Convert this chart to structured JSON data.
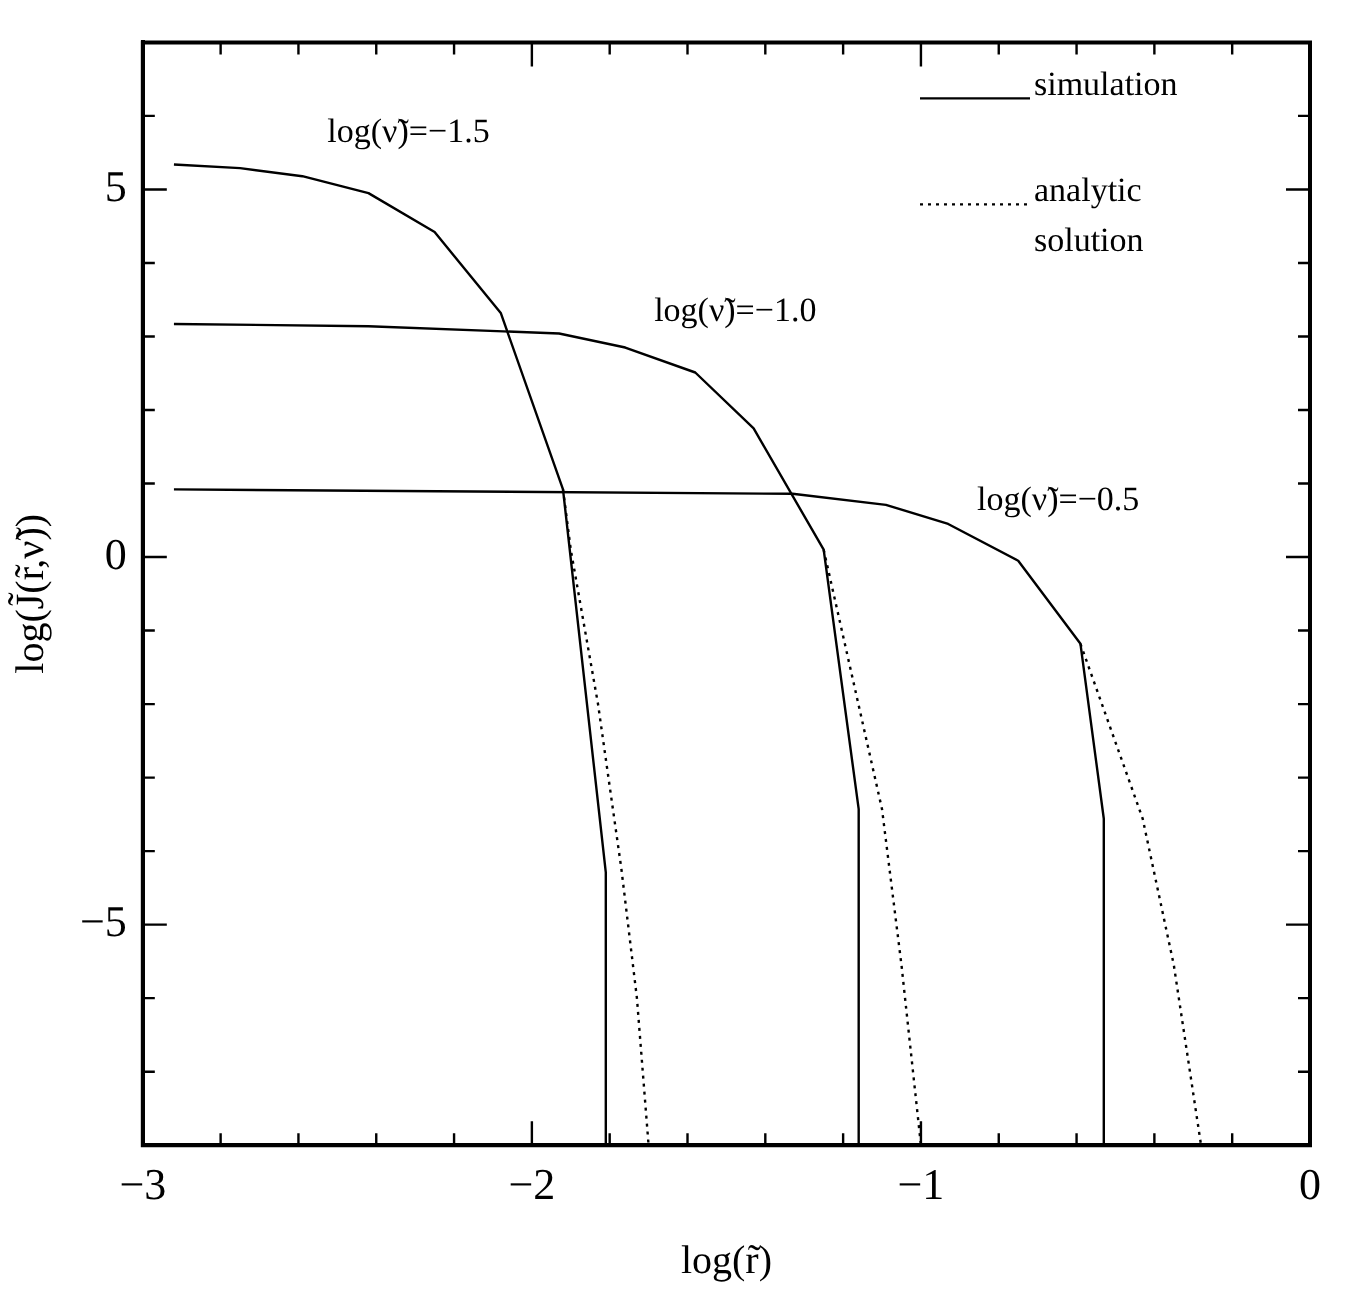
{
  "chart_data": {
    "type": "line",
    "xlabel": "log(r̃)",
    "ylabel": "log(J̃(r̃,ν̃))",
    "xlim": [
      -3,
      0
    ],
    "ylim": [
      -8,
      7
    ],
    "xticks": [
      -3,
      {
        "value": -2.8,
        "label": null
      },
      {
        "value": -2.6,
        "label": null
      },
      {
        "value": -2.4,
        "label": null
      },
      {
        "value": -2.2,
        "label": null
      },
      -2,
      {
        "value": -1.8,
        "label": null
      },
      {
        "value": -1.6,
        "label": null
      },
      {
        "value": -1.4,
        "label": null
      },
      {
        "value": -1.2,
        "label": null
      },
      -1,
      {
        "value": -0.8,
        "label": null
      },
      {
        "value": -0.6,
        "label": null
      },
      {
        "value": -0.4,
        "label": null
      },
      {
        "value": -0.2,
        "label": null
      },
      0
    ],
    "yticks": [
      {
        "value": -7,
        "label": null
      },
      {
        "value": -6,
        "label": null
      },
      -5,
      {
        "value": -4,
        "label": null
      },
      {
        "value": -3,
        "label": null
      },
      {
        "value": -2,
        "label": null
      },
      {
        "value": -1,
        "label": null
      },
      0,
      {
        "value": 1,
        "label": null
      },
      {
        "value": 2,
        "label": null
      },
      {
        "value": 3,
        "label": null
      },
      {
        "value": 4,
        "label": null
      },
      5,
      {
        "value": 6,
        "label": null
      }
    ],
    "grid": false,
    "legend": "top right",
    "marker": "none",
    "series": [
      {
        "name": "simulation",
        "color": "#000000",
        "line_style": "solid",
        "x": [
          -2.92,
          -2.75,
          -2.59,
          -2.42,
          -2.25,
          -2.08,
          -1.92,
          -1.81,
          -1.81
        ],
        "values": [
          5.34,
          5.29,
          5.18,
          4.95,
          4.42,
          3.32,
          0.92,
          -4.29,
          -8
        ]
      },
      {
        "color": "#000000",
        "line_style": "solid",
        "x": [
          -2.92,
          -2.42,
          -1.93,
          -1.76,
          -1.58,
          -1.43,
          -1.25,
          -1.16,
          -1.16
        ],
        "values": [
          3.17,
          3.14,
          3.04,
          2.85,
          2.51,
          1.75,
          0.1,
          -3.43,
          -8
        ]
      },
      {
        "color": "#000000",
        "line_style": "solid",
        "x": [
          -2.92,
          -1.33,
          -1.09,
          -0.93,
          -0.75,
          -0.59,
          -0.53,
          -0.53
        ],
        "values": [
          0.92,
          0.86,
          0.71,
          0.45,
          -0.05,
          -1.18,
          -3.56,
          -8
        ]
      },
      {
        "name": "analytic solution",
        "color": "#000000",
        "line_style": "dotted",
        "x": [
          -1.92,
          -1.9,
          -1.83,
          -1.77,
          -1.73,
          -1.7
        ],
        "values": [
          0.92,
          0.1,
          -2,
          -4.24,
          -6,
          -8
        ]
      },
      {
        "color": "#000000",
        "line_style": "dotted",
        "x": [
          -1.25,
          -1.1,
          -1.05,
          -1.0
        ],
        "values": [
          0.1,
          -3.43,
          -5.55,
          -8
        ]
      },
      {
        "color": "#000000",
        "line_style": "dotted",
        "x": [
          -0.59,
          -0.43,
          -0.35,
          -0.28
        ],
        "values": [
          -1.18,
          -3.56,
          -5.55,
          -8
        ]
      }
    ],
    "annotations": [
      {
        "text": "log(ν̃)=−1.5",
        "x": -2.42,
        "y": 4.95
      },
      {
        "text": "log(ν̃)=−1.0",
        "x": -1.58,
        "y": 2.51
      },
      {
        "text": "log(ν̃)=−0.5",
        "x": -0.75,
        "y": -0.05
      }
    ]
  }
}
